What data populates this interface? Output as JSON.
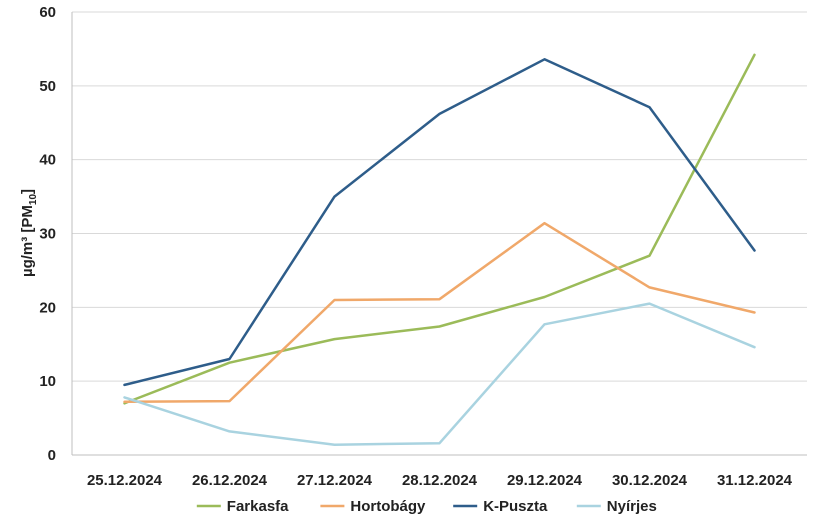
{
  "chart_data": {
    "type": "line",
    "categories": [
      "25.12.2024",
      "26.12.2024",
      "27.12.2024",
      "28.12.2024",
      "29.12.2024",
      "30.12.2024",
      "31.12.2024"
    ],
    "series": [
      {
        "name": "Farkasfa",
        "color": "#9bbb59",
        "values": [
          7.0,
          12.5,
          15.7,
          17.4,
          21.4,
          27.0,
          54.2
        ]
      },
      {
        "name": "Hortobágy",
        "color": "#f0a86a",
        "values": [
          7.2,
          7.3,
          21.0,
          21.1,
          31.4,
          22.7,
          19.3
        ]
      },
      {
        "name": "K-Puszta",
        "color": "#2e5d8a",
        "values": [
          9.5,
          13.0,
          35.0,
          46.2,
          53.6,
          47.1,
          27.7
        ]
      },
      {
        "name": "Nyírjes",
        "color": "#a9d3e0",
        "values": [
          7.8,
          3.2,
          1.4,
          1.6,
          17.7,
          20.5,
          14.6
        ]
      }
    ],
    "ylabel_main": "µg/m³  [PM",
    "ylabel_sub": "10",
    "ylabel_close": "]",
    "ylim": [
      0,
      60
    ],
    "yticks": [
      0,
      10,
      20,
      30,
      40,
      50,
      60
    ],
    "grid": true,
    "legend_position": "bottom"
  }
}
